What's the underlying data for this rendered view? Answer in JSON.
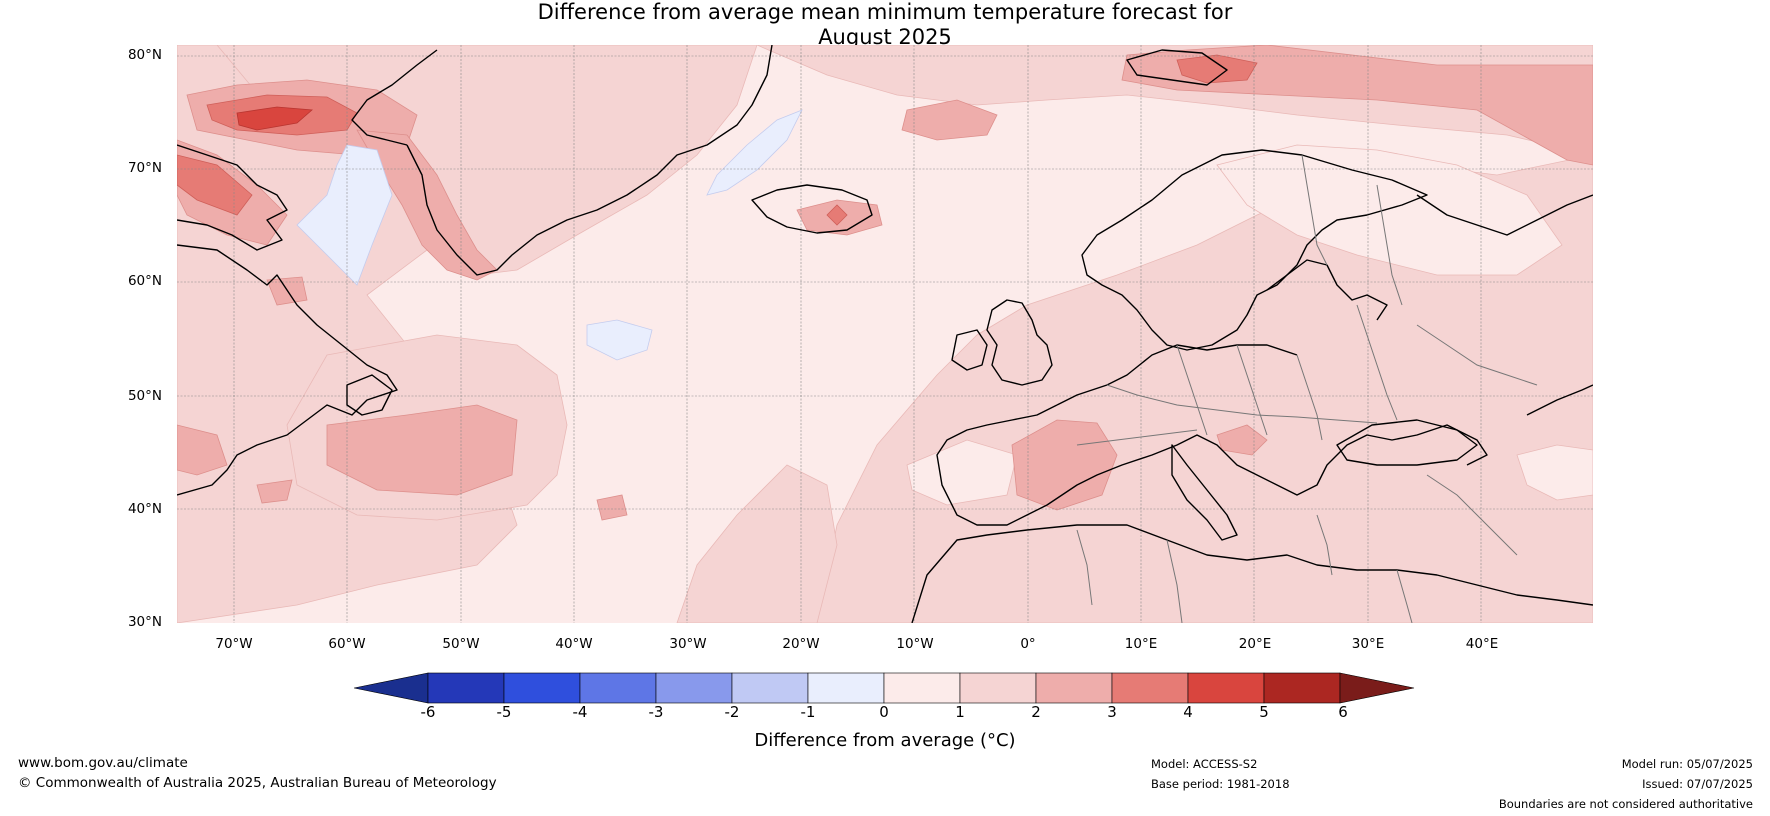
{
  "title_line1": "Difference from average mean minimum temperature forecast for",
  "title_line2": "August 2025",
  "latitudes": [
    "80°N",
    "70°N",
    "60°N",
    "50°N",
    "40°N",
    "30°N"
  ],
  "longitudes": [
    "70°W",
    "60°W",
    "50°W",
    "40°W",
    "30°W",
    "20°W",
    "10°W",
    "0°",
    "10°E",
    "20°E",
    "30°E",
    "40°E"
  ],
  "colorbar": {
    "label": "Difference from average (°C)",
    "ticks": [
      "-6",
      "-5",
      "-4",
      "-3",
      "-2",
      "-1",
      "0",
      "1",
      "2",
      "3",
      "4",
      "5",
      "6"
    ],
    "low_color": "#1a2f8f",
    "high_color": "#7a1c1a",
    "colors": [
      "#2438b8",
      "#2f4fdd",
      "#5e76e6",
      "#8899ec",
      "#c0c9f4",
      "#e9eefd",
      "#fcebea",
      "#f5d4d3",
      "#eeadab",
      "#e67b75",
      "#d9453e",
      "#ac2722"
    ]
  },
  "footer": {
    "website": "www.bom.gov.au/climate",
    "copyright": "© Commonwealth of Australia 2025, Australian Bureau of Meteorology",
    "model": "Model: ACCESS-S2",
    "base_period": "Base period: 1981-2018",
    "model_run": "Model run: 05/07/2025",
    "issued": "Issued: 07/07/2025",
    "disclaimer": "Boundaries are not considered authoritative"
  },
  "colors": {
    "ocean_base": "#fcebea",
    "land_base": "#f5d4d3",
    "above_2": "#eeadab",
    "above_3": "#e67b75",
    "above_4": "#d9453e",
    "below_0": "#e9eefd"
  }
}
